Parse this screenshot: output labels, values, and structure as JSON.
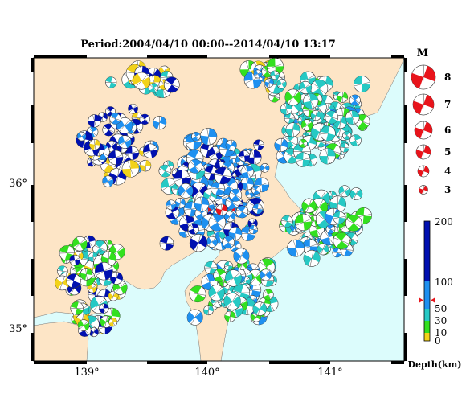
{
  "title": "Period:2004/04/10 00:00--2014/04/10 13:17",
  "axes": {
    "lon_ticks": [
      "139°",
      "140°",
      "141°"
    ],
    "lat_ticks": [
      "36°",
      "35°"
    ]
  },
  "magnitude_legend": {
    "title": "M",
    "levels": [
      "8",
      "7",
      "6",
      "5",
      "4",
      "3"
    ],
    "color": "#e8141b"
  },
  "depth_scale": {
    "label": "Depth(km)",
    "ticks": [
      "200",
      "100",
      "50",
      "30",
      "10",
      "0"
    ],
    "stops": [
      {
        "depth": 0,
        "color": "#f2d21a"
      },
      {
        "depth": 10,
        "color": "#f2d21a"
      },
      {
        "depth": 10,
        "color": "#33e01f"
      },
      {
        "depth": 30,
        "color": "#33e01f"
      },
      {
        "depth": 30,
        "color": "#26c9c4"
      },
      {
        "depth": 50,
        "color": "#26c9c4"
      },
      {
        "depth": 50,
        "color": "#1e90f0"
      },
      {
        "depth": 100,
        "color": "#1e90f0"
      },
      {
        "depth": 100,
        "color": "#0010b0"
      },
      {
        "depth": 200,
        "color": "#0010b0"
      }
    ],
    "marker_depth": 65,
    "marker_color": "#e8141b"
  },
  "map": {
    "land_color": "#fde5c6",
    "sea_color": "#dcfcfc",
    "lon_range": [
      138.55,
      141.6
    ],
    "lat_range": [
      34.8,
      36.8
    ],
    "highlight_event": {
      "lon": 140.1,
      "lat": 35.8,
      "color": "#e8141b"
    }
  },
  "colors": {
    "shallow": "#f2d21a",
    "shallow2": "#33e01f",
    "mid": "#26c9c4",
    "deep1": "#1e90f0",
    "deep2": "#0010b0"
  }
}
